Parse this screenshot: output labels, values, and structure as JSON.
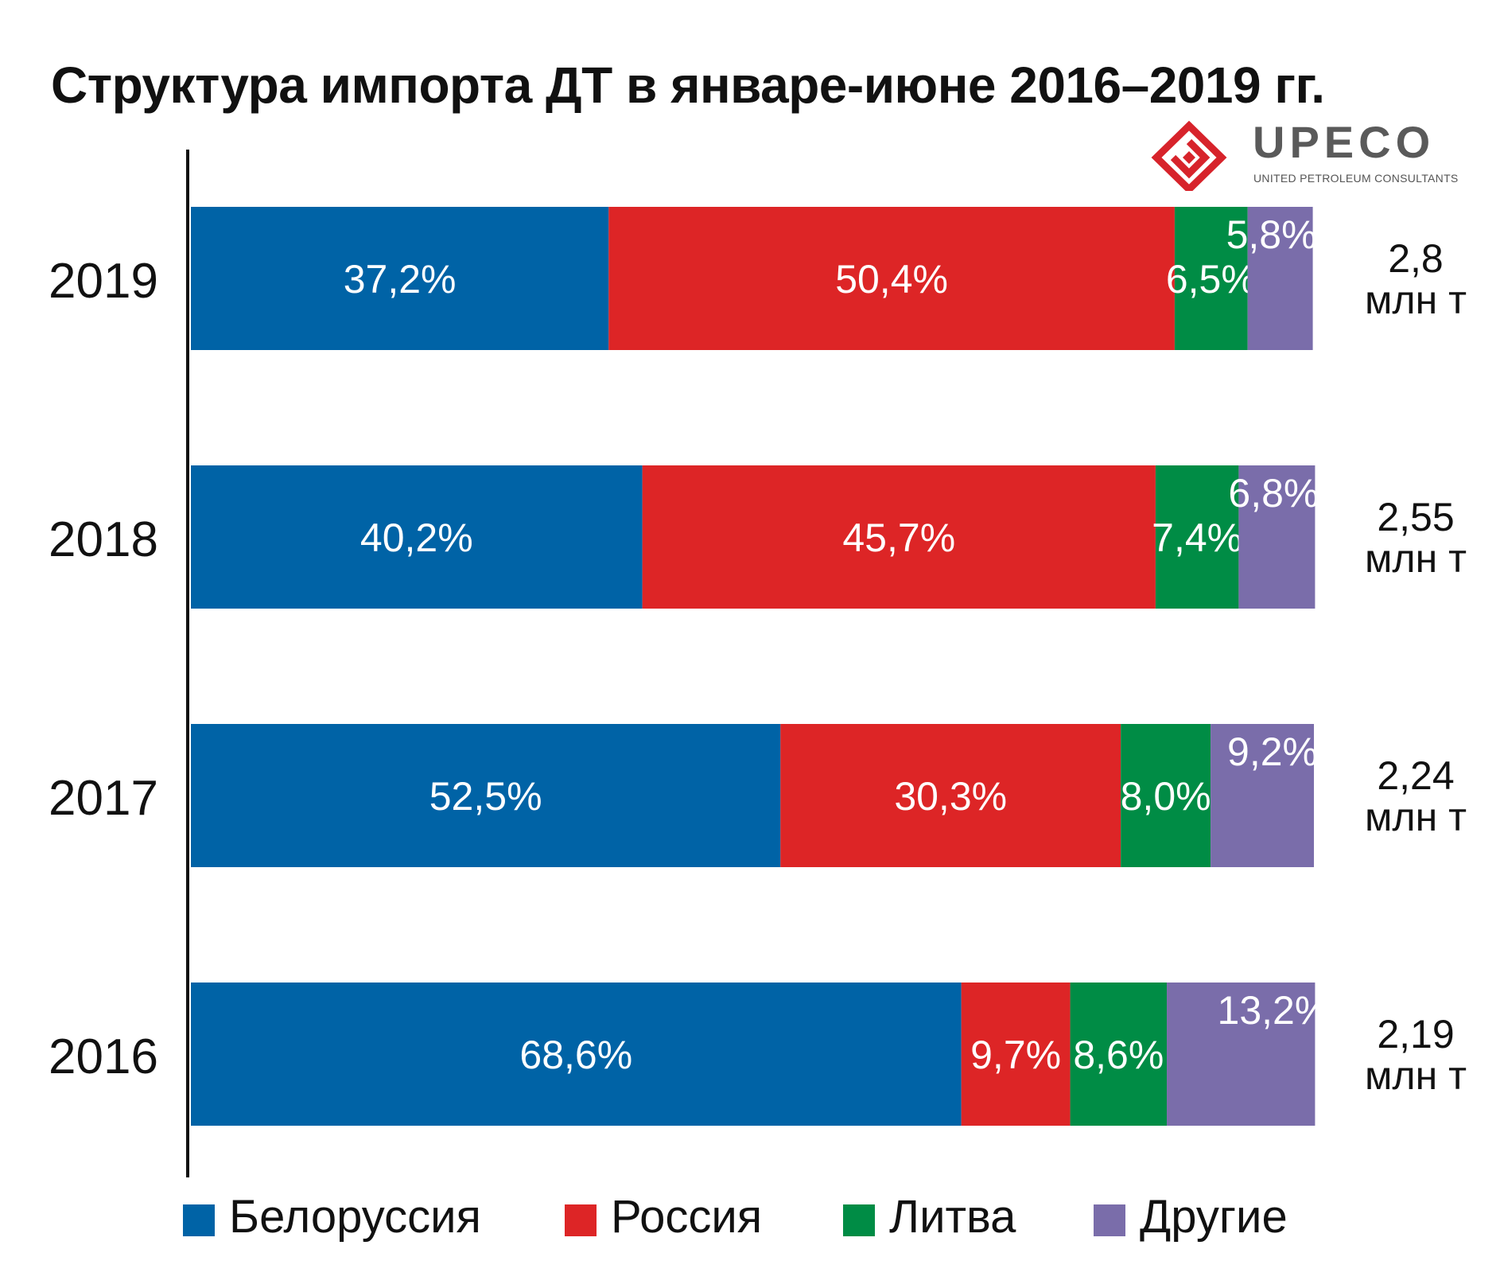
{
  "title": "Структура импорта ДТ в январе-июне 2016–2019 гг.",
  "logo": {
    "wordmark": "UPECO",
    "subtitle": "UNITED PETROLEUM CONSULTANTS",
    "brand_color": "#d7232b"
  },
  "chart_data": {
    "type": "bar",
    "orientation": "horizontal",
    "stacked": true,
    "normalized_percent": true,
    "categories": [
      "2019",
      "2018",
      "2017",
      "2016"
    ],
    "series": [
      {
        "name": "Белоруссия",
        "color": "#0063a6",
        "values": [
          37.2,
          40.2,
          52.5,
          68.6
        ],
        "labels": [
          "37,2%",
          "40,2%",
          "52,5%",
          "68,6%"
        ]
      },
      {
        "name": "Россия",
        "color": "#dd2526",
        "values": [
          50.4,
          45.7,
          30.3,
          9.7
        ],
        "labels": [
          "50,4%",
          "45,7%",
          "30,3%",
          "9,7%"
        ]
      },
      {
        "name": "Литва",
        "color": "#008c45",
        "values": [
          6.5,
          7.4,
          8.0,
          8.6
        ],
        "labels": [
          "6,5%",
          "7,4%",
          "8,0%",
          "8,6%"
        ]
      },
      {
        "name": "Другие",
        "color": "#7a6daa",
        "values": [
          5.8,
          6.8,
          9.2,
          13.2
        ],
        "labels": [
          "5,8%",
          "6,8%",
          "9,2%",
          "13,2%"
        ]
      }
    ],
    "totals": [
      {
        "value": "2,8",
        "unit": "млн т"
      },
      {
        "value": "2,55",
        "unit": "млн т"
      },
      {
        "value": "2,24",
        "unit": "млн т"
      },
      {
        "value": "2,19",
        "unit": "млн т"
      }
    ],
    "xlim": [
      0,
      100
    ],
    "grid": false,
    "legend": "bottom"
  }
}
